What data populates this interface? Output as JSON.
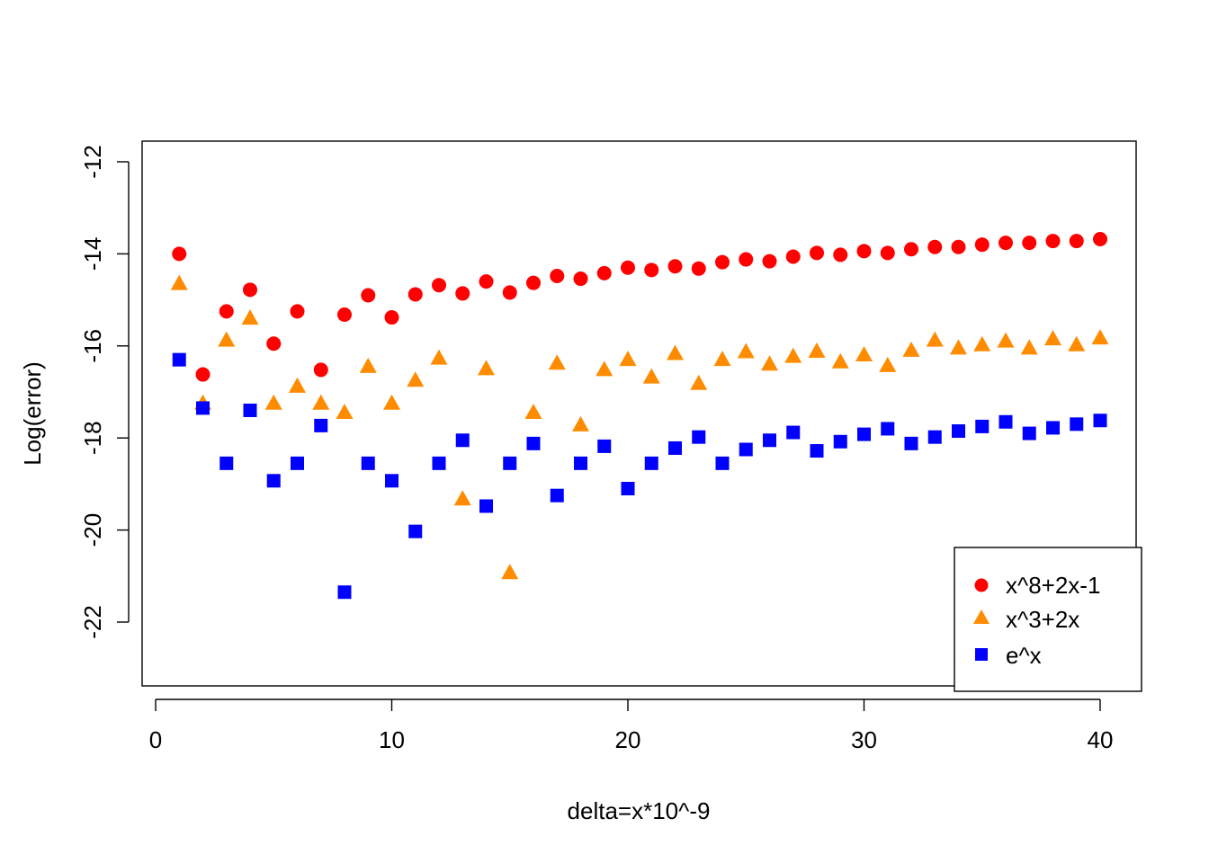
{
  "chart_data": {
    "type": "scatter",
    "title": "",
    "xlabel": "delta=x*10^-9",
    "ylabel": "Log(error)",
    "xlim": [
      0,
      40
    ],
    "ylim": [
      -23.5,
      -11.5
    ],
    "xticks": [
      0,
      10,
      20,
      30,
      40
    ],
    "yticks": [
      -22,
      -20,
      -18,
      -16,
      -14,
      -12
    ],
    "legend_position": "bottom-right",
    "x": [
      1,
      2,
      3,
      4,
      5,
      6,
      7,
      8,
      9,
      10,
      11,
      12,
      13,
      14,
      15,
      16,
      17,
      18,
      19,
      20,
      21,
      22,
      23,
      24,
      25,
      26,
      27,
      28,
      29,
      30,
      31,
      32,
      33,
      34,
      35,
      36,
      37,
      38,
      39,
      40
    ],
    "series": [
      {
        "name": "x^8+2x-1",
        "marker": "circle",
        "color": "#ff0000",
        "values": [
          -14.0,
          -16.62,
          -15.25,
          -14.78,
          -15.95,
          -15.25,
          -16.52,
          -15.32,
          -14.9,
          -15.38,
          -14.88,
          -14.68,
          -14.86,
          -14.6,
          -14.84,
          -14.63,
          -14.48,
          -14.54,
          -14.42,
          -14.3,
          -14.35,
          -14.27,
          -14.32,
          -14.18,
          -14.12,
          -14.16,
          -14.06,
          -13.98,
          -14.02,
          -13.94,
          -13.98,
          -13.9,
          -13.85,
          -13.85,
          -13.8,
          -13.76,
          -13.76,
          -13.72,
          -13.72,
          -13.68
        ]
      },
      {
        "name": "x^3+2x",
        "marker": "triangle",
        "color": "#ff8c00",
        "values": [
          -14.65,
          -17.25,
          -15.88,
          -15.4,
          -17.25,
          -16.88,
          -17.25,
          -17.45,
          -16.45,
          -17.25,
          -16.75,
          -16.27,
          -19.33,
          -16.5,
          -20.93,
          -17.45,
          -16.38,
          -17.72,
          -16.52,
          -16.3,
          -16.68,
          -16.17,
          -16.82,
          -16.3,
          -16.13,
          -16.4,
          -16.23,
          -16.12,
          -16.35,
          -16.2,
          -16.43,
          -16.1,
          -15.88,
          -16.05,
          -15.98,
          -15.9,
          -16.05,
          -15.85,
          -15.98,
          -15.83
        ]
      },
      {
        "name": "e^x",
        "marker": "square",
        "color": "#0000ff",
        "values": [
          -16.3,
          -17.35,
          -18.55,
          -17.4,
          -18.93,
          -18.55,
          -17.73,
          -21.35,
          -18.55,
          -18.93,
          -20.03,
          -18.55,
          -18.05,
          -19.48,
          -18.55,
          -18.12,
          -19.25,
          -18.55,
          -18.18,
          -19.1,
          -18.55,
          -18.22,
          -17.98,
          -18.55,
          -18.25,
          -18.05,
          -17.88,
          -18.28,
          -18.08,
          -17.92,
          -17.8,
          -18.12,
          -17.98,
          -17.85,
          -17.75,
          -17.65,
          -17.9,
          -17.78,
          -17.7,
          -17.62
        ]
      }
    ]
  }
}
